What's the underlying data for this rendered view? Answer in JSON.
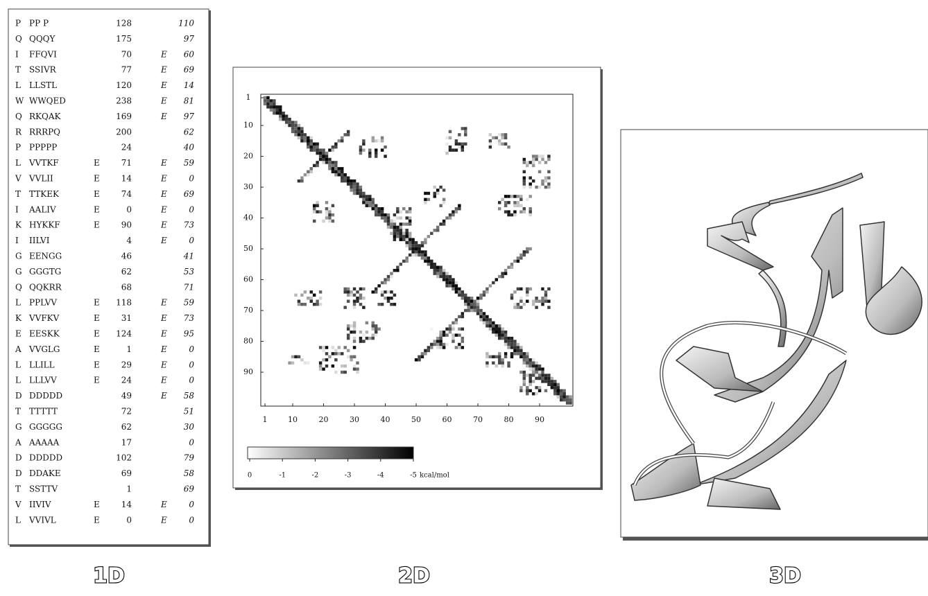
{
  "table": {
    "rows": [
      [
        "P",
        "PP P",
        null,
        128,
        null,
        110
      ],
      [
        "Q",
        "QQQY",
        null,
        175,
        null,
        97
      ],
      [
        "I",
        "FFQVI",
        null,
        70,
        "E",
        60
      ],
      [
        "T",
        "SSIVR",
        null,
        77,
        "E",
        69
      ],
      [
        "L",
        "LLSTL",
        null,
        120,
        "E",
        14
      ],
      [
        "W",
        "WWQED",
        null,
        238,
        "E",
        81
      ],
      [
        "Q",
        "RKQAK",
        null,
        169,
        "E",
        97
      ],
      [
        "R",
        "RRRPQ",
        null,
        200,
        null,
        62
      ],
      [
        "P",
        "PPPPP",
        null,
        24,
        null,
        40
      ],
      [
        "L",
        "VVTKF",
        "E",
        71,
        "E",
        59
      ],
      [
        "V",
        "VVLII",
        "E",
        14,
        "E",
        0
      ],
      [
        "T",
        "TTKEK",
        "E",
        74,
        "E",
        69
      ],
      [
        "I",
        "AALIV",
        "E",
        0,
        "E",
        0
      ],
      [
        "K",
        "HYKKF",
        "E",
        90,
        "E",
        73
      ],
      [
        "I",
        "IILVI",
        null,
        4,
        "E",
        0
      ],
      [
        "G",
        "EENGG",
        null,
        46,
        null,
        41
      ],
      [
        "G",
        "GGGTG",
        null,
        62,
        null,
        53
      ],
      [
        "Q",
        "QQKRR",
        null,
        68,
        null,
        71
      ],
      [
        "L",
        "PPLVV",
        "E",
        118,
        "E",
        59
      ],
      [
        "K",
        "VVFKV",
        "E",
        31,
        "E",
        73
      ],
      [
        "E",
        "EESKK",
        "E",
        124,
        "E",
        95
      ],
      [
        "A",
        "VVGLG",
        "E",
        1,
        "E",
        0
      ],
      [
        "L",
        "LLILL",
        "E",
        29,
        "E",
        0
      ],
      [
        "L",
        "LLLVV",
        "E",
        24,
        "E",
        0
      ],
      [
        "D",
        "DDDDD",
        null,
        49,
        "E",
        58
      ],
      [
        "T",
        "TTTTT",
        null,
        72,
        null,
        51
      ],
      [
        "G",
        "GGGGG",
        null,
        62,
        null,
        30
      ],
      [
        "A",
        "AAAAA",
        null,
        17,
        null,
        0
      ],
      [
        "D",
        "DDDDD",
        null,
        102,
        null,
        79
      ],
      [
        "D",
        "DDAKE",
        null,
        69,
        null,
        58
      ],
      [
        "T",
        "SSTTV",
        null,
        1,
        null,
        69
      ],
      [
        "V",
        "IIVIV",
        "E",
        14,
        "E",
        0
      ],
      [
        "L",
        "VVIVL",
        "E",
        0,
        "E",
        0
      ]
    ]
  },
  "contact_map": {
    "y_ticks": [
      1,
      10,
      20,
      30,
      40,
      50,
      60,
      70,
      80,
      90
    ],
    "x_ticks": [
      1,
      10,
      20,
      30,
      40,
      50,
      60,
      70,
      80,
      90
    ],
    "colorbar_ticks": [
      0,
      -1,
      -2,
      -3,
      -4,
      -5
    ],
    "unit": "kcal/mol"
  },
  "panel_labels": [
    "1D",
    "2D",
    "3D"
  ]
}
